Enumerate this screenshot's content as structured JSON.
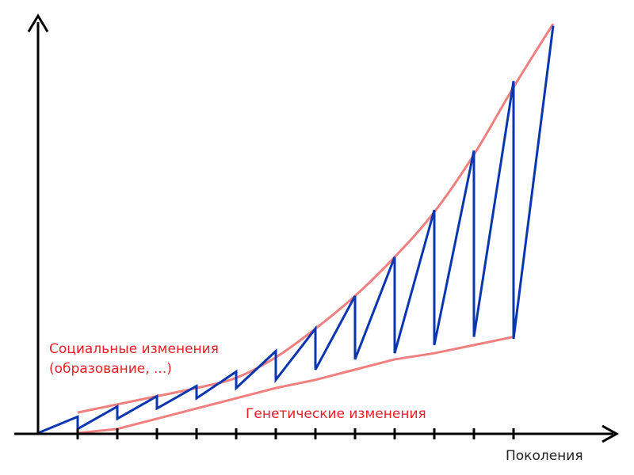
{
  "labels": {
    "social_line1": "Социальные изменения",
    "social_line2": "(образование, ...)",
    "genetic": "Генетические изменения",
    "x_axis": "Поколения"
  },
  "colors": {
    "envelope": "#f08080",
    "sawtooth": "#0a37b0",
    "axis": "#000000",
    "label_text": "#e8202a"
  },
  "tick_count": 13,
  "upper_envelope": [
    0.05,
    0.07,
    0.09,
    0.11,
    0.135,
    0.185,
    0.255,
    0.335,
    0.43,
    0.54,
    0.68,
    0.845,
    1.0
  ],
  "lower_envelope": [
    0.0,
    0.01,
    0.035,
    0.06,
    0.085,
    0.11,
    0.13,
    0.155,
    0.18,
    0.195,
    0.215,
    0.235
  ],
  "sawtooth": {
    "start_level": 0.0,
    "peaks": [
      0.04,
      0.065,
      0.09,
      0.115,
      0.15,
      0.2,
      0.255,
      0.335,
      0.43,
      0.545,
      0.69,
      0.86,
      0.995
    ],
    "resets": [
      0.01,
      0.035,
      0.06,
      0.085,
      0.11,
      0.13,
      0.155,
      0.18,
      0.195,
      0.215,
      0.235,
      0.23
    ]
  }
}
